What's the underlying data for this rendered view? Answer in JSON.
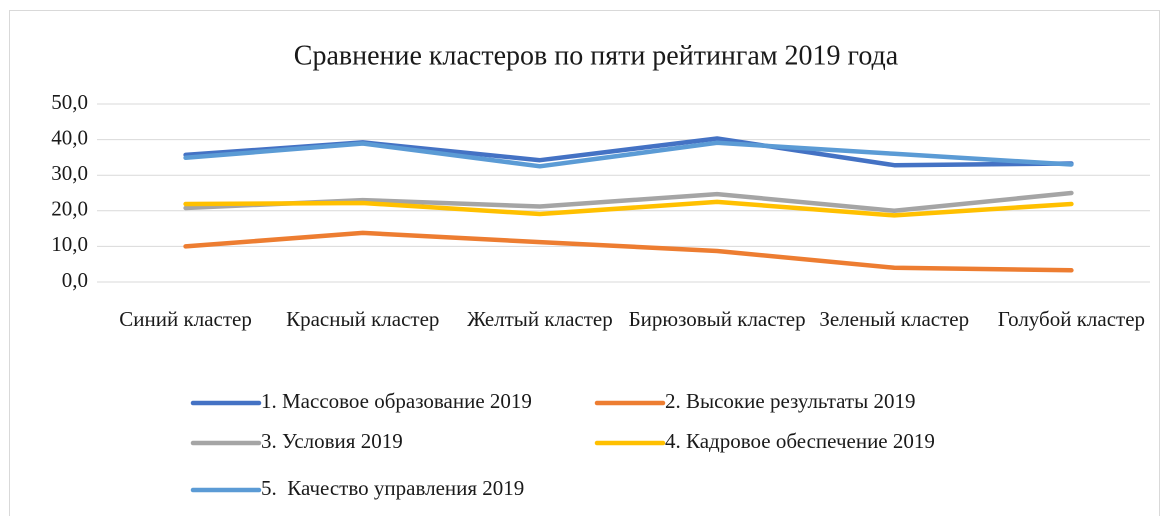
{
  "chart_data": {
    "type": "line",
    "title": "Сравнение кластеров по пяти рейтингам 2019 года",
    "categories": [
      "Синий кластер",
      "Красный кластер",
      "Желтый кластер",
      "Бирюзовый кластер",
      "Зеленый кластер",
      "Голубой кластер"
    ],
    "series": [
      {
        "name": "1. Массовое образование 2019",
        "color": "#4472c4",
        "values": [
          35.7,
          39.2,
          34.2,
          40.3,
          32.8,
          33.3
        ]
      },
      {
        "name": "2. Высокие результаты 2019",
        "color": "#ed7d31",
        "values": [
          10.0,
          13.8,
          11.2,
          8.7,
          4.0,
          3.3
        ]
      },
      {
        "name": "3. Условия 2019",
        "color": "#a5a5a5",
        "values": [
          20.8,
          23.0,
          21.2,
          24.7,
          20.0,
          25.0
        ]
      },
      {
        "name": "4. Кадровое обеспечение 2019",
        "color": "#ffc000",
        "values": [
          21.9,
          22.2,
          19.1,
          22.5,
          18.7,
          21.9
        ]
      },
      {
        "name": "5.  Качество управления 2019",
        "color": "#5b9bd5",
        "values": [
          34.9,
          38.9,
          32.5,
          39.1,
          36.0,
          33.0
        ]
      }
    ],
    "ylim": [
      0,
      50
    ],
    "yticks": [
      {
        "value": 0,
        "label": "0,0"
      },
      {
        "value": 10,
        "label": "10,0"
      },
      {
        "value": 20,
        "label": "20,0"
      },
      {
        "value": 30,
        "label": "30,0"
      },
      {
        "value": 40,
        "label": "40,0"
      },
      {
        "value": 50,
        "label": "50,0"
      }
    ],
    "grid": true,
    "legend": "bottom"
  }
}
